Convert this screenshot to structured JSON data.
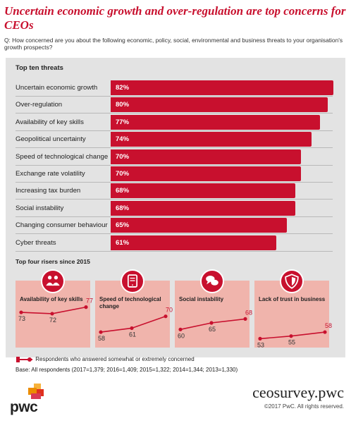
{
  "title": "Uncertain economic growth and over-regulation are top concerns for CEOs",
  "question": "Q: How concerned are you about the following economic, policy, social, environmental and business threats to your organisation's growth prospects?",
  "chart_data": [
    {
      "type": "bar",
      "title": "Top ten threats",
      "categories": [
        "Uncertain economic growth",
        "Over-regulation",
        "Availability of key skills",
        "Geopolitical uncertainty",
        "Speed of technological change",
        "Exchange rate volatility",
        "Increasing tax burden",
        "Social instability",
        "Changing consumer behaviour",
        "Cyber threats"
      ],
      "values": [
        82,
        80,
        77,
        74,
        70,
        70,
        68,
        68,
        65,
        61
      ],
      "value_labels": [
        "82%",
        "80%",
        "77%",
        "74%",
        "70%",
        "70%",
        "68%",
        "68%",
        "65%",
        "61%"
      ],
      "orientation": "horizontal",
      "colors": {
        "bar": "#c8102e"
      }
    },
    {
      "type": "line",
      "title": "Top four risers since 2015",
      "panels": [
        {
          "label": "Availability of key skills",
          "icon": "people-icon",
          "values": [
            73,
            72,
            77
          ]
        },
        {
          "label": "Speed of technological change",
          "icon": "tablet-icon",
          "values": [
            58,
            61,
            70
          ]
        },
        {
          "label": "Social instability",
          "icon": "speech-bubbles-icon",
          "values": [
            60,
            65,
            68
          ]
        },
        {
          "label": "Lack of trust in business",
          "icon": "shield-icon",
          "values": [
            53,
            55,
            58
          ]
        }
      ],
      "ylim": [
        50,
        80
      ],
      "colors": {
        "line": "#c8102e",
        "last_label": "#c8102e",
        "card": "#f0b4ac"
      }
    }
  ],
  "legend": "Respondents who answered somewhat or extremely concerned",
  "base": "Base: All respondents (2017=1,379; 2016=1,409; 2015=1,322; 2014=1,344; 2013=1,330)",
  "footer": {
    "logo": "pwc",
    "site": "ceosurvey.pwc",
    "copyright": "©2017 PwC. All rights reserved."
  }
}
